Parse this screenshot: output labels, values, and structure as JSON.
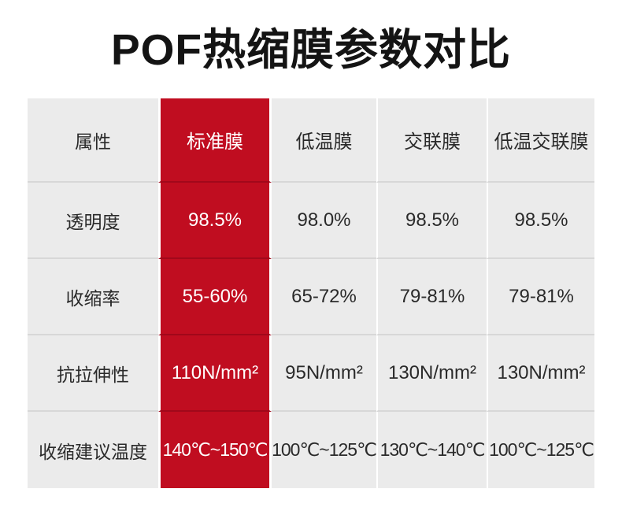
{
  "title": "POF热缩膜参数对比",
  "colors": {
    "highlight_red": "#c00d20",
    "highlight_red_divider": "#a1081a",
    "cell_gray": "#ebebeb",
    "row_divider_gray": "#d7d7d7",
    "text_dark": "#2a2a2a",
    "title_black": "#141414",
    "highlight_text": "#ffffff"
  },
  "table": {
    "header": [
      "属性",
      "标准膜",
      "低温膜",
      "交联膜",
      "低温交联膜"
    ],
    "highlighted_column": "标准膜",
    "rows": [
      {
        "attribute": "透明度",
        "values": [
          "98.5%",
          "98.0%",
          "98.5%",
          "98.5%"
        ]
      },
      {
        "attribute": "收缩率",
        "values": [
          "55-60%",
          "65-72%",
          "79-81%",
          "79-81%"
        ]
      },
      {
        "attribute": "抗拉伸性",
        "values": [
          "110N/mm²",
          "95N/mm²",
          "130N/mm²",
          "130N/mm²"
        ]
      },
      {
        "attribute": "收缩建议温度",
        "values": [
          "140℃~150℃",
          "100℃~125℃",
          "130℃~140℃",
          "100℃~125℃"
        ]
      }
    ]
  },
  "chart_data": {
    "type": "table",
    "title": "POF热缩膜参数对比",
    "columns": [
      "属性",
      "标准膜",
      "低温膜",
      "交联膜",
      "低温交联膜"
    ],
    "highlighted_column": "标准膜",
    "rows": [
      [
        "透明度",
        "98.5%",
        "98.0%",
        "98.5%",
        "98.5%"
      ],
      [
        "收缩率",
        "55-60%",
        "65-72%",
        "79-81%",
        "79-81%"
      ],
      [
        "抗拉伸性",
        "110N/mm²",
        "95N/mm²",
        "130N/mm²",
        "130N/mm²"
      ],
      [
        "收缩建议温度",
        "140℃~150℃",
        "100℃~125℃",
        "130℃~140℃",
        "100℃~125℃"
      ]
    ]
  }
}
